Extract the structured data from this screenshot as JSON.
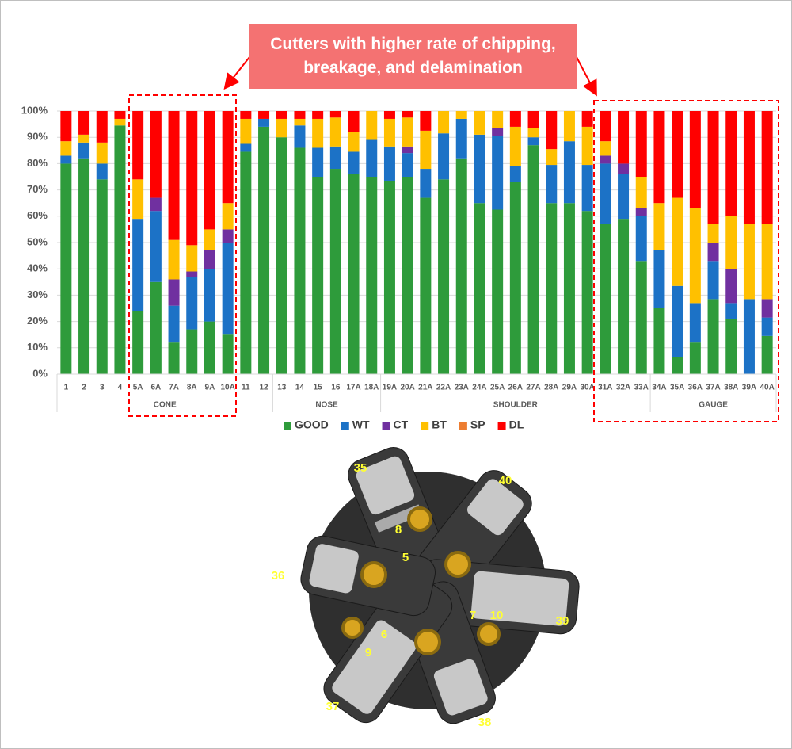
{
  "chart_data": {
    "type": "stacked_bar",
    "annotation": "Cutters with higher rate of chipping, breakage, and delamination",
    "categories": [
      "1",
      "2",
      "3",
      "4",
      "5A",
      "6A",
      "7A",
      "8A",
      "9A",
      "10A",
      "11",
      "12",
      "13",
      "14",
      "15",
      "16",
      "17A",
      "18A",
      "19A",
      "20A",
      "21A",
      "22A",
      "23A",
      "24A",
      "25A",
      "26A",
      "27A",
      "28A",
      "29A",
      "30A",
      "31A",
      "32A",
      "33A",
      "34A",
      "35A",
      "36A",
      "37A",
      "38A",
      "39A",
      "40A"
    ],
    "category_groups": [
      "CONE",
      "CONE",
      "CONE",
      "CONE",
      "CONE",
      "CONE",
      "CONE",
      "CONE",
      "CONE",
      "CONE",
      "CONE",
      "CONE",
      "NOSE",
      "NOSE",
      "NOSE",
      "NOSE",
      "NOSE",
      "NOSE",
      "SHOULDER",
      "SHOULDER",
      "SHOULDER",
      "SHOULDER",
      "SHOULDER",
      "SHOULDER",
      "SHOULDER",
      "SHOULDER",
      "SHOULDER",
      "SHOULDER",
      "SHOULDER",
      "SHOULDER",
      "SHOULDER",
      "SHOULDER",
      "SHOULDER",
      "GAUGE",
      "GAUGE",
      "GAUGE",
      "GAUGE",
      "GAUGE",
      "GAUGE",
      "GAUGE"
    ],
    "series": [
      {
        "name": "GOOD",
        "color": "#2e9b3b",
        "values": [
          80,
          82,
          74,
          94.5,
          24,
          35,
          12,
          17,
          20,
          15,
          84.5,
          94,
          90,
          86,
          75,
          78,
          76,
          75,
          73.5,
          75,
          67,
          74,
          82,
          65,
          62.5,
          73,
          87,
          65,
          65,
          62,
          57,
          59,
          43,
          25,
          6.5,
          12,
          28.5,
          21,
          0,
          14.5
        ]
      },
      {
        "name": "WT",
        "color": "#1c72c6",
        "values": [
          3,
          6,
          6,
          0,
          35,
          27,
          14,
          20,
          20,
          35,
          3,
          3,
          0,
          8.5,
          11,
          8.5,
          8.5,
          14,
          13,
          9,
          11,
          17.5,
          15,
          26,
          28,
          6,
          3,
          14.5,
          23.5,
          17.5,
          23,
          17,
          17,
          22,
          27,
          15,
          14.5,
          6,
          28.5,
          7
        ]
      },
      {
        "name": "CT",
        "color": "#7030a0",
        "values": [
          0,
          0,
          0,
          0,
          0,
          5,
          10,
          2,
          7,
          5,
          0,
          0,
          0,
          0,
          0,
          0,
          0,
          0,
          0,
          2.5,
          0,
          0,
          0,
          0,
          3,
          0,
          0,
          0,
          0,
          0,
          3,
          4,
          3,
          0,
          0,
          0,
          7,
          13,
          0,
          7
        ]
      },
      {
        "name": "BT",
        "color": "#ffc000",
        "values": [
          5.5,
          3,
          8,
          2.5,
          15,
          0,
          15,
          10,
          8,
          10,
          9.5,
          0,
          7,
          2.5,
          11,
          11,
          7.5,
          11,
          10.5,
          11,
          14.5,
          8.5,
          3,
          9,
          6.5,
          15,
          3.5,
          6,
          11.5,
          14.5,
          5.5,
          0,
          12,
          18,
          33.5,
          36,
          7,
          20,
          28.5,
          28.5
        ]
      },
      {
        "name": "SP",
        "color": "#ed7d31",
        "values": [
          0,
          0,
          0,
          0,
          0,
          0,
          0,
          0,
          0,
          0,
          0,
          0,
          0,
          0,
          0,
          0,
          0,
          0,
          0,
          0,
          0,
          0,
          0,
          0,
          0,
          0,
          0,
          0,
          0,
          0,
          0,
          0,
          0,
          0,
          0,
          0,
          0,
          0,
          0,
          0
        ]
      },
      {
        "name": "DL",
        "color": "#ff0000",
        "values": [
          11.5,
          9,
          12,
          3,
          26,
          33,
          49,
          51,
          45,
          35,
          3,
          3,
          3,
          3,
          3,
          2.5,
          8,
          0,
          3,
          2.5,
          7.5,
          0,
          0,
          0,
          0,
          6,
          6.5,
          14.5,
          0,
          6,
          11.5,
          20,
          25,
          35,
          33,
          37,
          43,
          40,
          43,
          43
        ]
      }
    ],
    "ylim": [
      0,
      100
    ],
    "yticks": [
      {
        "value": 0,
        "label": "0%"
      },
      {
        "value": 10,
        "label": "10%"
      },
      {
        "value": 20,
        "label": "20%"
      },
      {
        "value": 30,
        "label": "30%"
      },
      {
        "value": 40,
        "label": "40%"
      },
      {
        "value": 50,
        "label": "50%"
      },
      {
        "value": 60,
        "label": "60%"
      },
      {
        "value": 70,
        "label": "70%"
      },
      {
        "value": 80,
        "label": "80%"
      },
      {
        "value": 90,
        "label": "90%"
      },
      {
        "value": 100,
        "label": "100%"
      }
    ],
    "grid": true,
    "legend": "bottom"
  },
  "bit_image": {
    "labels": [
      "35",
      "40",
      "8",
      "5",
      "36",
      "7",
      "10",
      "39",
      "6",
      "9",
      "37",
      "38"
    ]
  }
}
